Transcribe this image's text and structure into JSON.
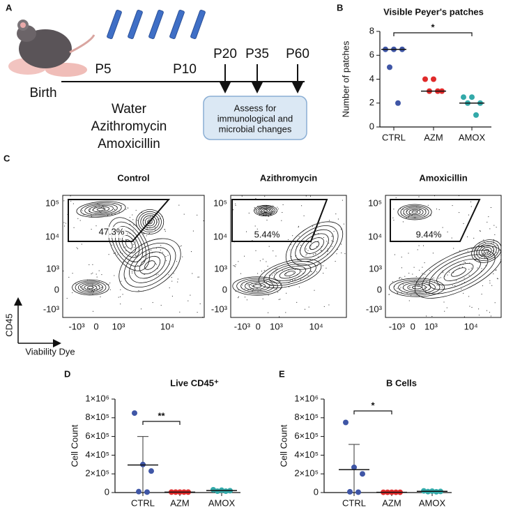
{
  "panel_labels": [
    "A",
    "B",
    "C",
    "D",
    "E"
  ],
  "timeline": {
    "points": [
      "P5",
      "P10",
      "P20",
      "P35",
      "P60"
    ],
    "start": "Birth",
    "groups": [
      {
        "name": "Water",
        "color": "#3f56a6"
      },
      {
        "name": "Azithromycin",
        "color": "#e02a2a"
      },
      {
        "name": "Amoxicillin",
        "color": "#33a9a9"
      }
    ],
    "box": [
      "Assess for",
      "immunological and",
      "microbial changes"
    ]
  },
  "flow": {
    "plots": [
      {
        "title": "Control",
        "color": "#2e3a87",
        "gate": "47.3%"
      },
      {
        "title": "Azithromycin",
        "color": "#e02a2a",
        "gate": "5.44%"
      },
      {
        "title": "Amoxicillin",
        "color": "#1f9696",
        "gate": "9.44%"
      }
    ],
    "yticks": [
      "10⁵",
      "10⁴",
      "10³",
      "0",
      "-10³"
    ],
    "xticks": [
      "-10³",
      "0",
      "10³",
      "10⁴"
    ],
    "ylabel": "CD45",
    "xlabel": "Viability Dye"
  },
  "chart_data": [
    {
      "type": "strip",
      "title": "Visible Peyer's patches",
      "ylabel": "Number of patches",
      "categories": [
        "CTRL",
        "AZM",
        "AMOX"
      ],
      "colors": [
        "#3f56a6",
        "#e02a2a",
        "#33a9a9"
      ],
      "values": [
        [
          6.5,
          6.5,
          6.5,
          5,
          2
        ],
        [
          4,
          4,
          3,
          3,
          3
        ],
        [
          2.5,
          2.5,
          2,
          2,
          1
        ]
      ],
      "centers": [
        6.5,
        3,
        2
      ],
      "ylim": [
        0,
        8
      ],
      "yticks": [
        0,
        2,
        4,
        6,
        8
      ],
      "significance": {
        "label": "*",
        "between": [
          0,
          2
        ]
      }
    },
    {
      "type": "strip",
      "title": "Live CD45⁺",
      "ylabel": "Cell Count",
      "categories": [
        "CTRL",
        "AZM",
        "AMOX"
      ],
      "colors": [
        "#3f56a6",
        "#e02a2a",
        "#33a9a9"
      ],
      "values": [
        [
          850000,
          300000,
          230000,
          10000,
          5000
        ],
        [
          5000,
          5000,
          5000,
          5000,
          5000
        ],
        [
          30000,
          25000,
          20000,
          15000,
          15000
        ]
      ],
      "centers": [
        295000,
        5000,
        21000
      ],
      "errors": [
        305000,
        0,
        6000
      ],
      "ylim": [
        0,
        1000000
      ],
      "yticks": [
        0,
        {
          "value": 200000,
          "label": "2×10⁵"
        },
        {
          "value": 400000,
          "label": "4×10⁵"
        },
        {
          "value": 600000,
          "label": "6×10⁵"
        },
        {
          "value": 800000,
          "label": "8×10⁵"
        },
        {
          "value": 1000000,
          "label": "1×10⁶"
        }
      ],
      "significance": {
        "label": "**",
        "between": [
          0,
          1
        ]
      }
    },
    {
      "type": "strip",
      "title": "B Cells",
      "ylabel": "Cell Count",
      "categories": [
        "CTRL",
        "AZM",
        "AMOX"
      ],
      "colors": [
        "#3f56a6",
        "#e02a2a",
        "#33a9a9"
      ],
      "values": [
        [
          750000,
          270000,
          200000,
          8000,
          4000
        ],
        [
          3000,
          3000,
          3000,
          3000,
          3000
        ],
        [
          18000,
          15000,
          12000,
          10000,
          8000
        ]
      ],
      "centers": [
        245000,
        3000,
        12600
      ],
      "errors": [
        270000,
        0,
        4000
      ],
      "ylim": [
        0,
        1000000
      ],
      "yticks": [
        0,
        {
          "value": 200000,
          "label": "2×10⁵"
        },
        {
          "value": 400000,
          "label": "4×10⁵"
        },
        {
          "value": 600000,
          "label": "6×10⁵"
        },
        {
          "value": 800000,
          "label": "8×10⁵"
        },
        {
          "value": 1000000,
          "label": "1×10⁶"
        }
      ],
      "significance": {
        "label": "*",
        "between": [
          0,
          1
        ]
      }
    }
  ]
}
